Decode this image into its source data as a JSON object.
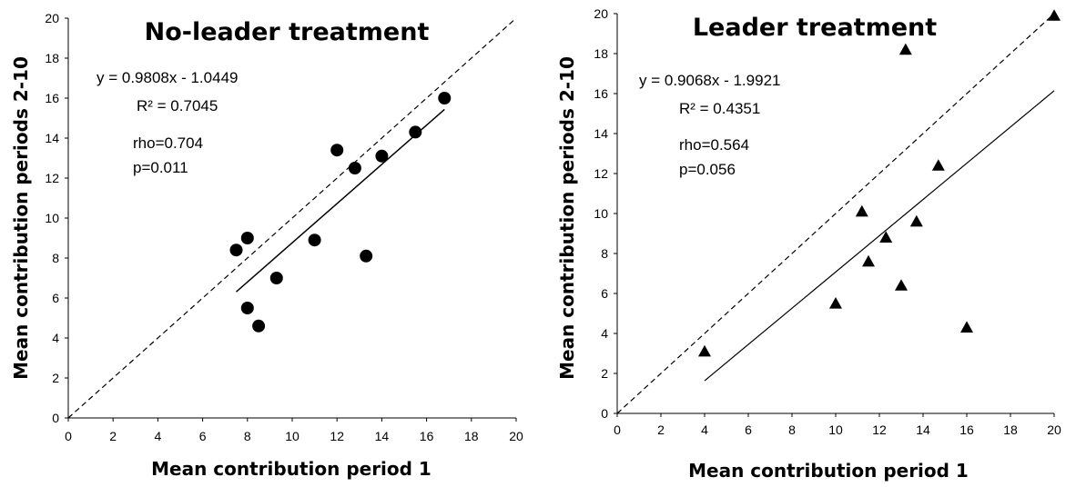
{
  "chart_data": [
    {
      "type": "scatter",
      "title": "No-leader treatment",
      "xlabel": "Mean contribution period 1",
      "ylabel": "Mean contribution periods 2-10",
      "xlim": [
        0,
        20
      ],
      "ylim": [
        0,
        20
      ],
      "xticks": [
        "0",
        "2",
        "4",
        "6",
        "8",
        "10",
        "12",
        "14",
        "16",
        "18",
        "20"
      ],
      "yticks": [
        "0",
        "2",
        "4",
        "6",
        "8",
        "10",
        "12",
        "14",
        "16",
        "18",
        "20"
      ],
      "marker": "circle",
      "points": [
        {
          "x": 7.5,
          "y": 8.4
        },
        {
          "x": 8.0,
          "y": 9.0
        },
        {
          "x": 8.0,
          "y": 5.5
        },
        {
          "x": 8.5,
          "y": 4.6
        },
        {
          "x": 9.3,
          "y": 7.0
        },
        {
          "x": 11.0,
          "y": 8.9
        },
        {
          "x": 12.0,
          "y": 13.4
        },
        {
          "x": 12.8,
          "y": 12.5
        },
        {
          "x": 13.3,
          "y": 8.1
        },
        {
          "x": 14.0,
          "y": 13.1
        },
        {
          "x": 15.5,
          "y": 14.3
        },
        {
          "x": 16.8,
          "y": 16.0
        }
      ],
      "trendline": {
        "slope": 0.9808,
        "intercept": -1.0449,
        "x_range": [
          7.5,
          16.8
        ]
      },
      "reference_line": "y = x (dashed)",
      "annotations": {
        "equation": "y = 0.9808x - 1.0449",
        "r2": "R² = 0.7045",
        "rho": "rho=0.704",
        "p": "p=0.011"
      }
    },
    {
      "type": "scatter",
      "title": "Leader treatment",
      "xlabel": "Mean contribution period 1",
      "ylabel": "Mean contribution periods 2-10",
      "xlim": [
        0,
        20
      ],
      "ylim": [
        0,
        20
      ],
      "xticks": [
        "0",
        "2",
        "4",
        "6",
        "8",
        "10",
        "12",
        "14",
        "16",
        "18",
        "20"
      ],
      "yticks": [
        "0",
        "2",
        "4",
        "6",
        "8",
        "10",
        "12",
        "14",
        "16",
        "18",
        "20"
      ],
      "marker": "triangle",
      "points": [
        {
          "x": 4.0,
          "y": 3.1
        },
        {
          "x": 10.0,
          "y": 5.5
        },
        {
          "x": 11.2,
          "y": 10.1
        },
        {
          "x": 11.5,
          "y": 7.6
        },
        {
          "x": 12.3,
          "y": 8.8
        },
        {
          "x": 13.0,
          "y": 6.4
        },
        {
          "x": 13.2,
          "y": 18.2
        },
        {
          "x": 13.7,
          "y": 9.6
        },
        {
          "x": 14.7,
          "y": 12.4
        },
        {
          "x": 16.0,
          "y": 4.3
        },
        {
          "x": 20.0,
          "y": 19.9
        }
      ],
      "trendline": {
        "slope": 0.9068,
        "intercept": -1.9921,
        "x_range": [
          4.0,
          20.0
        ]
      },
      "reference_line": "y = x (dashed)",
      "annotations": {
        "equation": "y = 0.9068x - 1.9921",
        "r2": "R² = 0.4351",
        "rho": "rho=0.564",
        "p": "p=0.056"
      }
    }
  ]
}
